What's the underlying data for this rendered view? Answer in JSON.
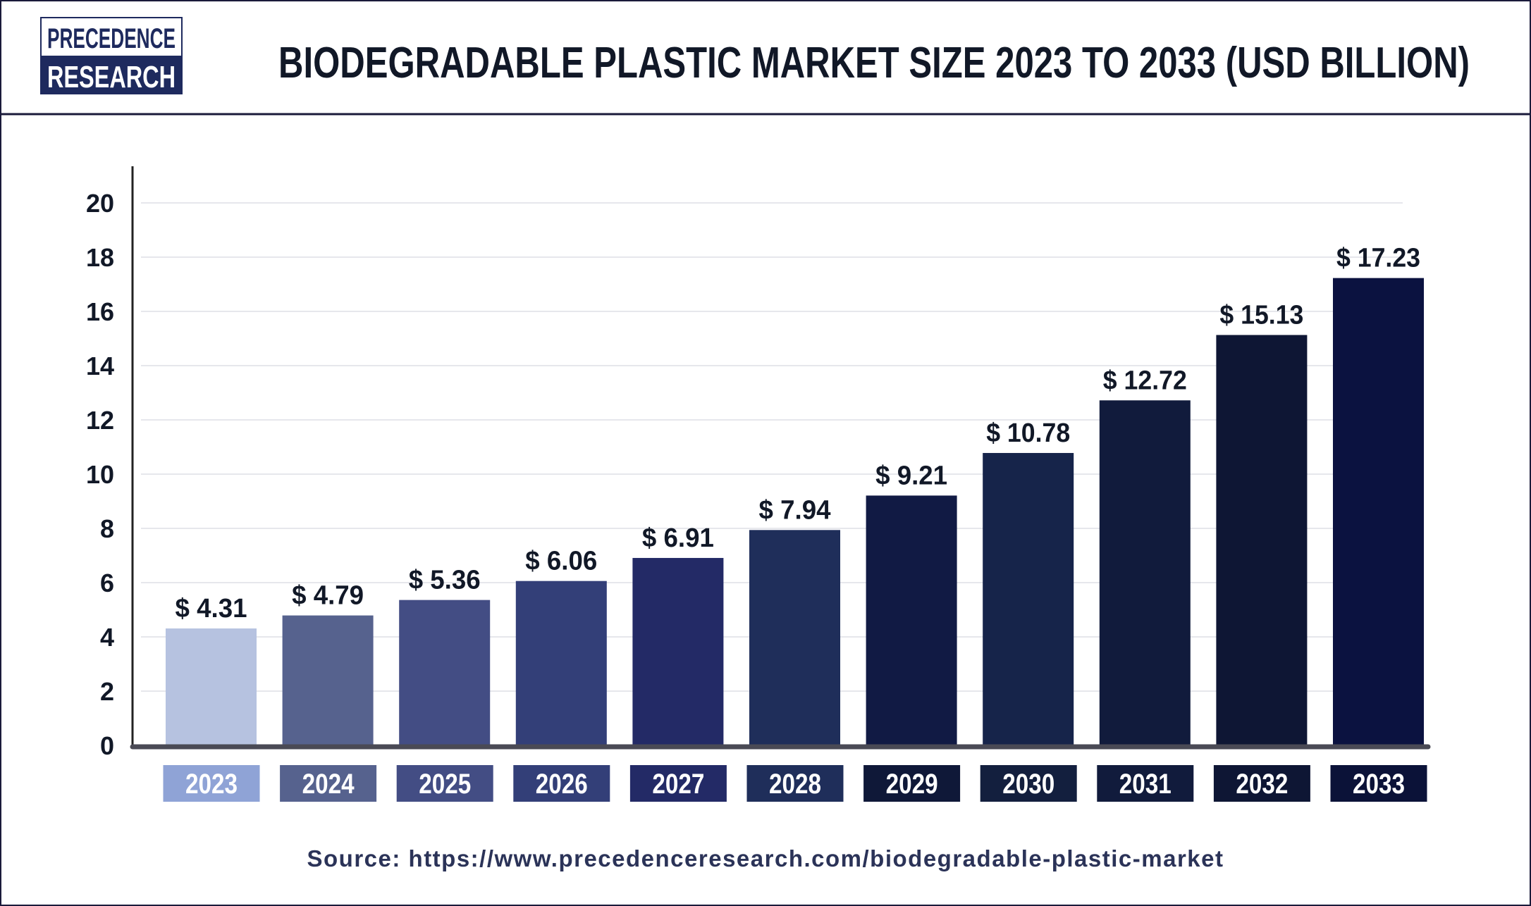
{
  "header": {
    "logo": {
      "line1": "PRECEDENCE",
      "line2": "RESEARCH"
    },
    "title": "BIODEGRADABLE PLASTIC MARKET SIZE 2023 TO 2033 (USD BILLION)"
  },
  "source": "Source: https://www.precedenceresearch.com/biodegradable-plastic-market",
  "colors": {
    "border": "#1a1a3a",
    "text": "#111827",
    "source_text": "#2b3358",
    "bars": [
      "#b6c2e0",
      "#56628e",
      "#434d84",
      "#333f78",
      "#232a66",
      "#1f2e5a",
      "#111a44",
      "#16244a",
      "#111b3c",
      "#0e1634",
      "#0b1240"
    ],
    "label_boxes": [
      "#8fa3d6",
      "#56628e",
      "#434d84",
      "#333f78",
      "#232a66",
      "#1f2e5a",
      "#0f1838",
      "#131f3e",
      "#111b3c",
      "#0e1634",
      "#0b1238"
    ]
  },
  "chart_data": {
    "type": "bar",
    "title": "BIODEGRADABLE PLASTIC MARKET SIZE 2023 TO 2033 (USD BILLION)",
    "categories": [
      "2023",
      "2024",
      "2025",
      "2026",
      "2027",
      "2028",
      "2029",
      "2030",
      "2031",
      "2032",
      "2033"
    ],
    "values": [
      4.31,
      4.79,
      5.36,
      6.06,
      6.91,
      7.94,
      9.21,
      10.78,
      12.72,
      15.13,
      17.23
    ],
    "data_labels": [
      "$ 4.31",
      "$ 4.79",
      "$ 5.36",
      "$ 6.06",
      "$ 6.91",
      "$ 7.94",
      "$ 9.21",
      "$ 10.78",
      "$ 12.72",
      "$ 15.13",
      "$ 17.23"
    ],
    "yticks": [
      "0",
      "2",
      "4",
      "6",
      "8",
      "10",
      "12",
      "14",
      "16",
      "18",
      "20"
    ],
    "ylim": [
      0,
      20
    ],
    "grid": true,
    "xlabel": "",
    "ylabel": ""
  }
}
